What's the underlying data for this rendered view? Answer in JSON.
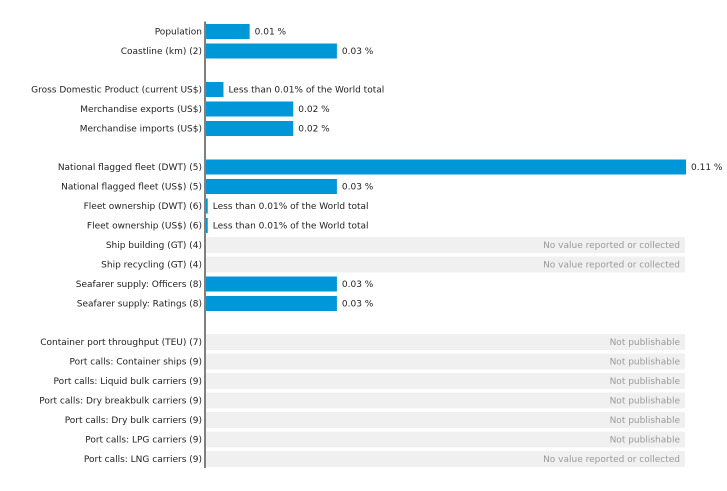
{
  "colors": {
    "bar": "#0097d9",
    "no_data_background": "#f0f0f0",
    "axis": "#000000",
    "text": "#222222",
    "no_data_text": "#9a9a9a"
  },
  "chart_data": {
    "type": "bar",
    "orientation": "horizontal",
    "title": "",
    "xlabel": "",
    "ylabel": "",
    "unit": "%",
    "xlim": [
      0,
      0.11
    ],
    "grid": false,
    "legend": "none",
    "groups": [
      {
        "rows": [
          {
            "label": "Population",
            "value": 0.01,
            "value_label": "0.01 %"
          },
          {
            "label": "Coastline (km) (2)",
            "value": 0.03,
            "value_label": "0.03 %"
          }
        ]
      },
      {
        "rows": [
          {
            "label": "Gross Domestic Product (current US$)",
            "value": 0.004,
            "value_label": "Less than 0.01% of the World total"
          },
          {
            "label": "Merchandise exports (US$)",
            "value": 0.02,
            "value_label": "0.02 %"
          },
          {
            "label": "Merchandise imports (US$)",
            "value": 0.02,
            "value_label": "0.02 %"
          }
        ]
      },
      {
        "rows": [
          {
            "label": "National flagged fleet (DWT) (5)",
            "value": 0.11,
            "value_label": "0.11 %"
          },
          {
            "label": "National flagged fleet (US$) (5)",
            "value": 0.03,
            "value_label": "0.03 %"
          },
          {
            "label": "Fleet ownership (DWT) (6)",
            "value": 0.0004,
            "value_label": "Less than 0.01% of the World total"
          },
          {
            "label": "Fleet ownership (US$) (6)",
            "value": 0.0004,
            "value_label": "Less than 0.01% of the World total"
          },
          {
            "label": "Ship building (GT) (4)",
            "value": null,
            "status": "No value reported or collected"
          },
          {
            "label": "Ship recycling (GT) (4)",
            "value": null,
            "status": "No value reported or collected"
          },
          {
            "label": "Seafarer supply: Officers (8)",
            "value": 0.03,
            "value_label": "0.03 %"
          },
          {
            "label": "Seafarer supply: Ratings (8)",
            "value": 0.03,
            "value_label": "0.03 %"
          }
        ]
      },
      {
        "rows": [
          {
            "label": "Container port throughput (TEU) (7)",
            "value": null,
            "status": "Not publishable"
          },
          {
            "label": "Port calls: Container ships (9)",
            "value": null,
            "status": "Not publishable"
          },
          {
            "label": "Port calls: Liquid bulk carriers (9)",
            "value": null,
            "status": "Not publishable"
          },
          {
            "label": "Port calls: Dry breakbulk carriers (9)",
            "value": null,
            "status": "Not publishable"
          },
          {
            "label": "Port calls: Dry bulk carriers (9)",
            "value": null,
            "status": "Not publishable"
          },
          {
            "label": "Port calls: LPG carriers (9)",
            "value": null,
            "status": "Not publishable"
          },
          {
            "label": "Port calls: LNG carriers (9)",
            "value": null,
            "status": "No value reported or collected"
          }
        ]
      }
    ]
  }
}
